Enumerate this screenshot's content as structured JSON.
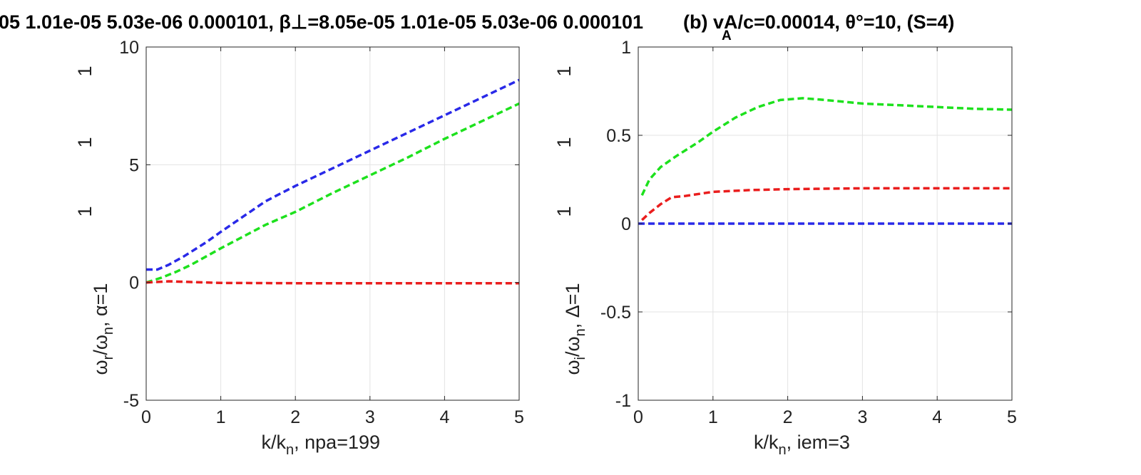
{
  "figure": {
    "title_text": "05  1.01e-05  5.03e-06  0.000101, β⊥=8.05e-05  1.01e-05  5.03e-06  0.000101",
    "overlap_text": "(b) vA/c=0.00014, θ°=10, (S=4)",
    "overlap_sub": "A"
  },
  "chart_data": [
    {
      "type": "line",
      "xlabel": "k/kn, npa=199",
      "xlabel_parts": [
        "k/k",
        "n",
        ", npa=199"
      ],
      "ylabel": "ωr/ωn, α=1",
      "ylabel_parts": [
        "ω",
        "r",
        "/ω",
        "n",
        ", α=1"
      ],
      "xlim": [
        0,
        5
      ],
      "ylim": [
        -5,
        10
      ],
      "xticks": [
        "0",
        "1",
        "2",
        "3",
        "4",
        "5"
      ],
      "yticks": [
        "-5",
        "0",
        "5",
        "10"
      ],
      "extra_labels": [
        "1",
        "1",
        "1"
      ],
      "grid": true,
      "series": [
        {
          "color": "#2929e8",
          "dash": "dashed",
          "x": [
            0,
            0.15,
            0.3,
            0.5,
            0.8,
            1.0,
            1.3,
            1.6,
            2.0,
            2.5,
            3.0,
            3.5,
            4.0,
            4.5,
            5.0
          ],
          "y": [
            0.55,
            0.55,
            0.75,
            1.1,
            1.7,
            2.15,
            2.8,
            3.45,
            4.1,
            4.85,
            5.6,
            6.35,
            7.1,
            7.85,
            8.6
          ]
        },
        {
          "color": "#1de11d",
          "dash": "dashed",
          "x": [
            0,
            0.2,
            0.4,
            0.6,
            0.8,
            1.0,
            1.3,
            1.6,
            2.0,
            2.5,
            3.0,
            3.5,
            4.0,
            4.5,
            5.0
          ],
          "y": [
            0.0,
            0.2,
            0.45,
            0.75,
            1.1,
            1.45,
            1.95,
            2.45,
            3.0,
            3.8,
            4.55,
            5.3,
            6.1,
            6.85,
            7.6
          ]
        },
        {
          "color": "#ea1d1d",
          "dash": "dashed",
          "x": [
            0,
            0.3,
            0.6,
            1.0,
            2.0,
            3.0,
            4.0,
            5.0
          ],
          "y": [
            0.0,
            0.05,
            0.02,
            -0.02,
            -0.03,
            -0.03,
            -0.03,
            -0.03
          ]
        }
      ]
    },
    {
      "type": "line",
      "xlabel": "k/kn, iem=3",
      "xlabel_parts": [
        "k/k",
        "n",
        ", iem=3"
      ],
      "ylabel": "ωi/ωn, Δ=1",
      "ylabel_parts": [
        "ω",
        "i",
        "/ω",
        "n",
        ", Δ=1"
      ],
      "xlim": [
        0,
        5
      ],
      "ylim": [
        -1,
        1
      ],
      "xticks": [
        "0",
        "1",
        "2",
        "3",
        "4",
        "5"
      ],
      "yticks": [
        "-1",
        "-0.5",
        "0",
        "0.5",
        "1"
      ],
      "extra_labels": [
        "1",
        "1",
        "1"
      ],
      "grid": true,
      "series": [
        {
          "color": "#1de11d",
          "dash": "dashed",
          "x": [
            0.05,
            0.15,
            0.3,
            0.5,
            0.8,
            1.0,
            1.3,
            1.6,
            1.9,
            2.2,
            2.5,
            3.0,
            3.5,
            4.0,
            4.5,
            5.0
          ],
          "y": [
            0.16,
            0.25,
            0.32,
            0.38,
            0.46,
            0.52,
            0.6,
            0.66,
            0.7,
            0.71,
            0.7,
            0.68,
            0.67,
            0.66,
            0.65,
            0.645
          ]
        },
        {
          "color": "#ea1d1d",
          "dash": "dashed",
          "x": [
            0.05,
            0.15,
            0.3,
            0.45,
            0.6,
            1.0,
            1.5,
            2.0,
            3.0,
            4.0,
            5.0
          ],
          "y": [
            0.02,
            0.06,
            0.11,
            0.15,
            0.155,
            0.18,
            0.19,
            0.195,
            0.2,
            0.2,
            0.2
          ]
        },
        {
          "color": "#2929e8",
          "dash": "dashed",
          "x": [
            0,
            5
          ],
          "y": [
            0.0,
            0.0
          ]
        }
      ]
    }
  ]
}
